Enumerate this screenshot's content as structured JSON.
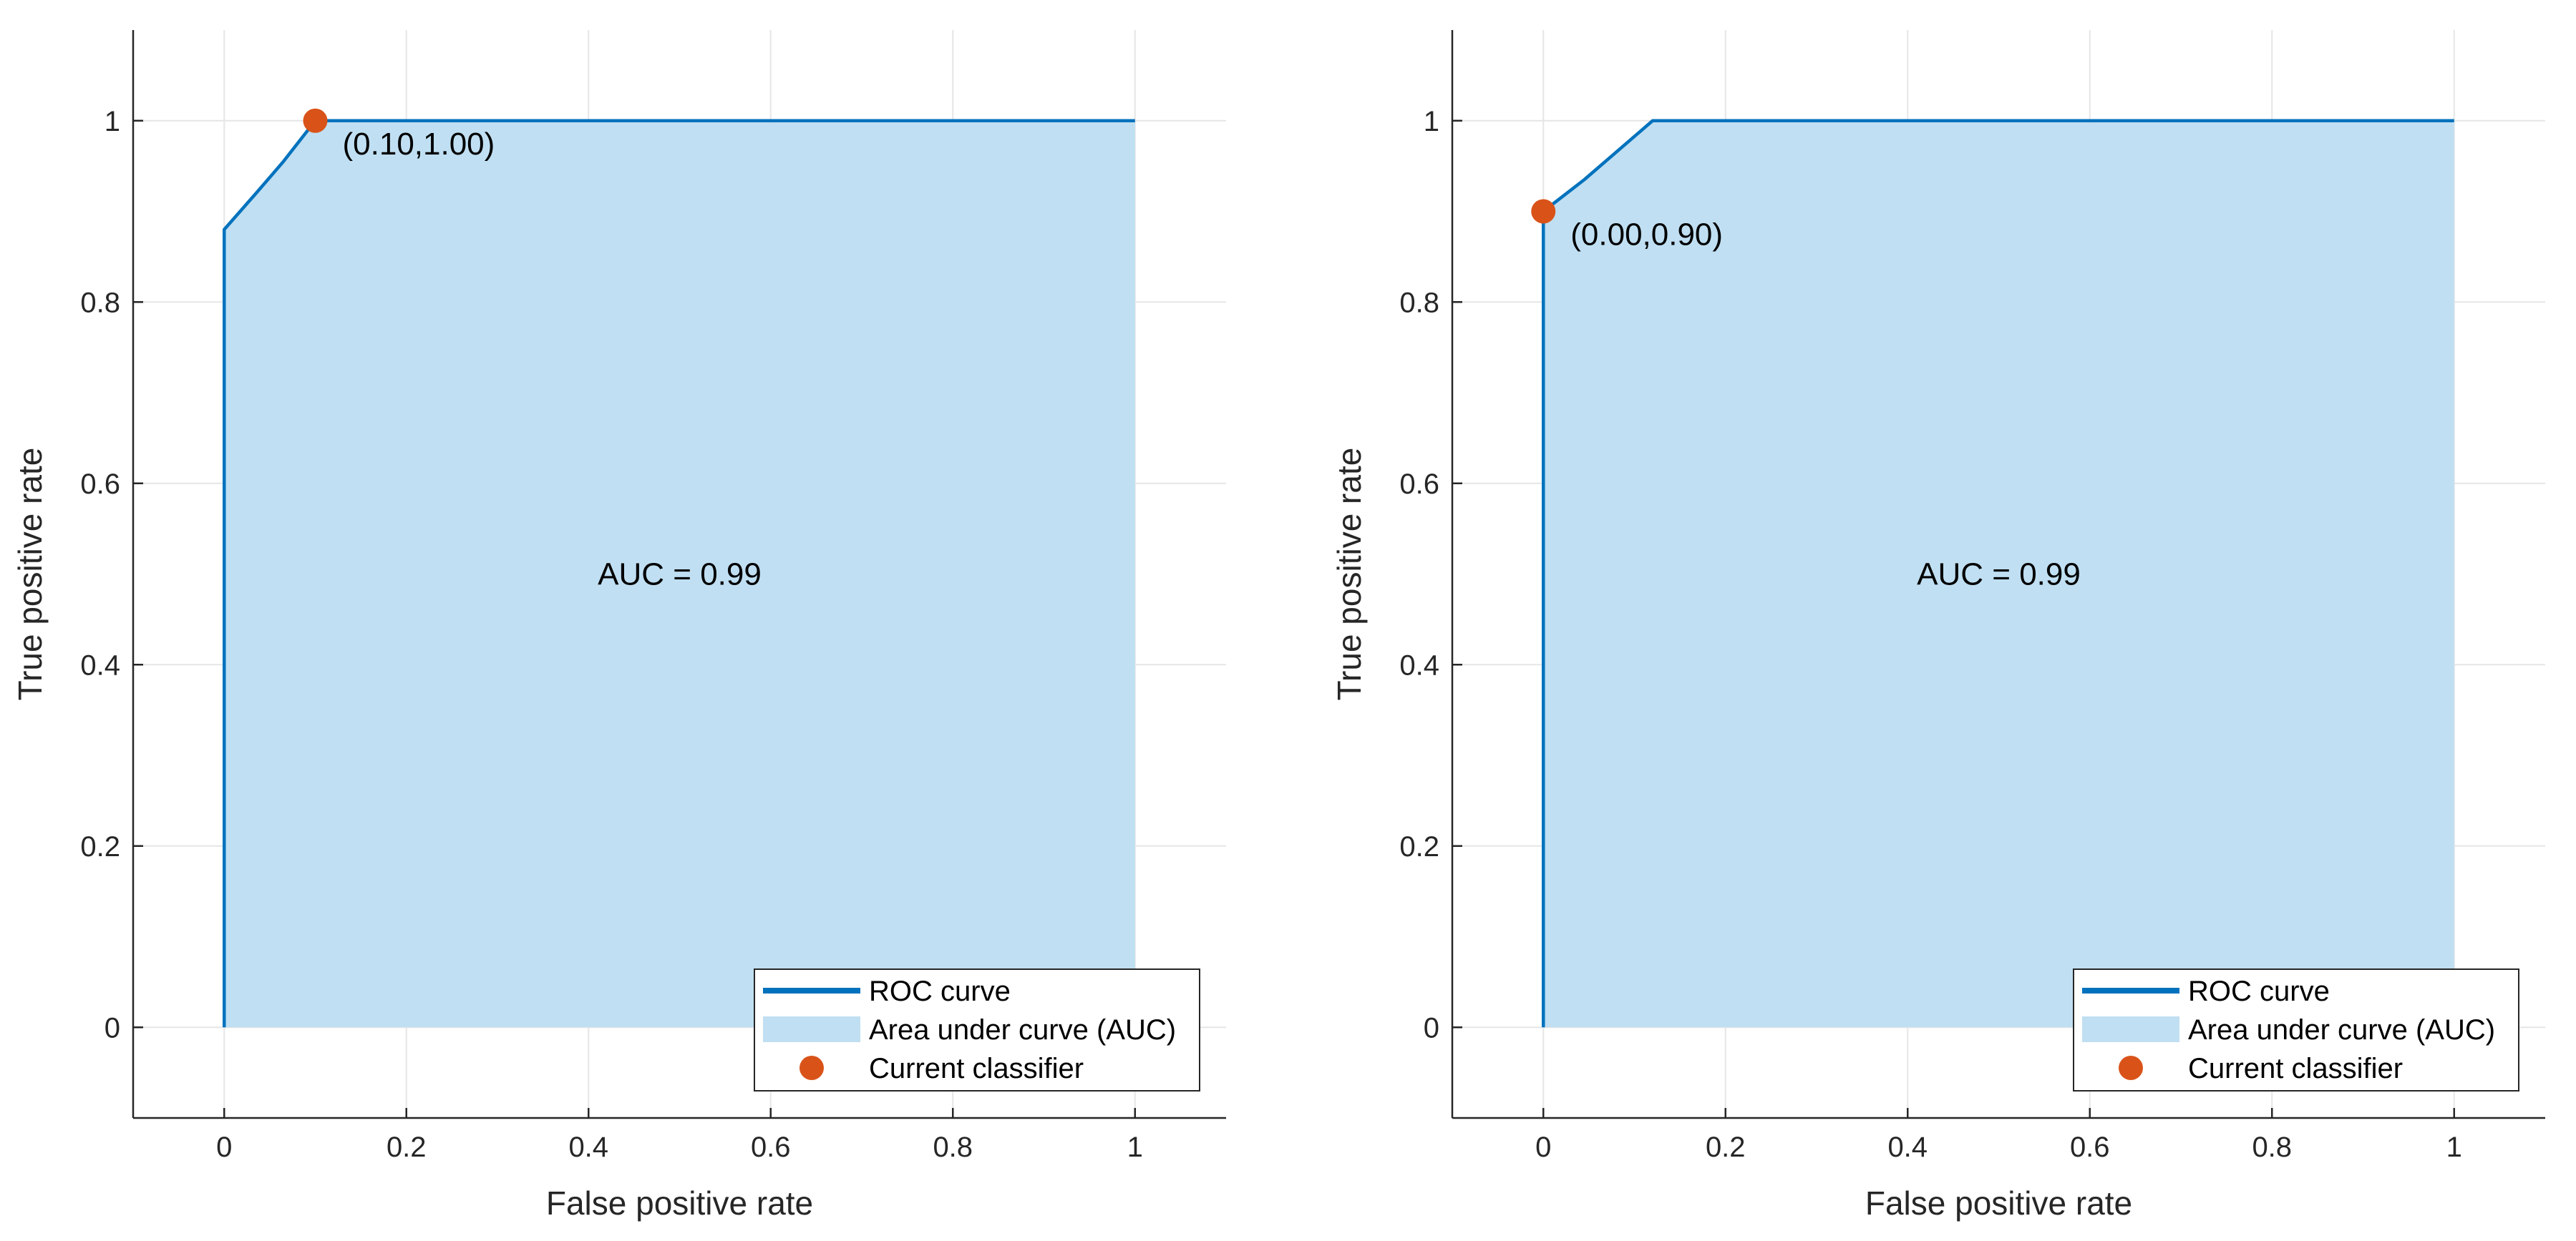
{
  "chart_data": [
    {
      "type": "area",
      "title": "",
      "xlabel": "False positive rate",
      "ylabel": "True positive rate",
      "xlim": [
        -0.1,
        1.1
      ],
      "ylim": [
        -0.1,
        1.1
      ],
      "xticks": [
        0,
        0.2,
        0.4,
        0.6,
        0.8,
        1
      ],
      "yticks": [
        0,
        0.2,
        0.4,
        0.6,
        0.8,
        1
      ],
      "xtick_labels": [
        "0",
        "0.2",
        "0.4",
        "0.6",
        "0.8",
        "1"
      ],
      "ytick_labels": [
        "0",
        "0.2",
        "0.4",
        "0.6",
        "0.8",
        "1"
      ],
      "grid": true,
      "series": [
        {
          "name": "ROC curve",
          "x": [
            0,
            0,
            0.035,
            0.065,
            0.1,
            1
          ],
          "y": [
            0,
            0.88,
            0.92,
            0.955,
            1.0,
            1.0
          ]
        }
      ],
      "current_classifier": {
        "x": 0.1,
        "y": 1.0,
        "label": "(0.10,1.00)"
      },
      "auc_label": "AUC = 0.99",
      "legend": {
        "position": "bottom-right",
        "entries": [
          "ROC curve",
          "Area under curve (AUC)",
          "Current classifier"
        ]
      },
      "colors": {
        "line": "#0072BD",
        "fill": "#C0DFF2",
        "marker": "#D95319"
      }
    },
    {
      "type": "area",
      "title": "",
      "xlabel": "False positive rate",
      "ylabel": "True positive rate",
      "xlim": [
        -0.1,
        1.1
      ],
      "ylim": [
        -0.1,
        1.1
      ],
      "xticks": [
        0,
        0.2,
        0.4,
        0.6,
        0.8,
        1
      ],
      "yticks": [
        0,
        0.2,
        0.4,
        0.6,
        0.8,
        1
      ],
      "xtick_labels": [
        "0",
        "0.2",
        "0.4",
        "0.6",
        "0.8",
        "1"
      ],
      "ytick_labels": [
        "0",
        "0.2",
        "0.4",
        "0.6",
        "0.8",
        "1"
      ],
      "grid": true,
      "series": [
        {
          "name": "ROC curve",
          "x": [
            0,
            0,
            0.045,
            0.12,
            1
          ],
          "y": [
            0,
            0.9,
            0.935,
            1.0,
            1.0
          ]
        }
      ],
      "current_classifier": {
        "x": 0.0,
        "y": 0.9,
        "label": "(0.00,0.90)"
      },
      "auc_label": "AUC = 0.99",
      "legend": {
        "position": "bottom-right",
        "entries": [
          "ROC curve",
          "Area under curve (AUC)",
          "Current classifier"
        ]
      },
      "colors": {
        "line": "#0072BD",
        "fill": "#C0DFF2",
        "marker": "#D95319"
      }
    }
  ]
}
